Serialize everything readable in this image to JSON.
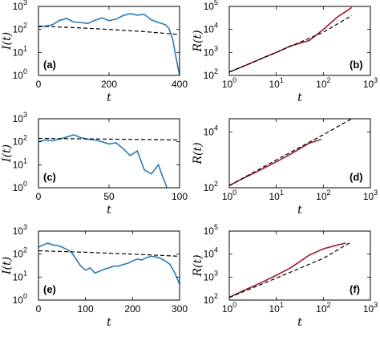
{
  "colors": {
    "data_I": "#2a7ab8",
    "data_R": "#a01a30",
    "fit": "#000000"
  },
  "chart_data": [
    {
      "panel": "(a)",
      "type": "line",
      "xlabel": "t",
      "ylabel": "I(t)",
      "xscale": "linear",
      "yscale": "log",
      "xlim": [
        0,
        400
      ],
      "ylim": [
        1,
        1000
      ],
      "xticks": [
        "0",
        "200",
        "400"
      ],
      "yticks": [
        "10^0",
        "10^1",
        "10^2",
        "10^3"
      ],
      "series": [
        {
          "style": "solid",
          "color": "data_I",
          "x": [
            0,
            20,
            40,
            60,
            80,
            100,
            120,
            140,
            160,
            180,
            200,
            220,
            240,
            260,
            280,
            300,
            320,
            340,
            360,
            370,
            380,
            390,
            400
          ],
          "y": [
            130,
            140,
            160,
            250,
            300,
            210,
            200,
            180,
            250,
            320,
            240,
            280,
            400,
            480,
            420,
            450,
            260,
            200,
            160,
            110,
            40,
            6,
            1
          ]
        },
        {
          "style": "dashed",
          "color": "fit",
          "x": [
            0,
            100,
            200,
            300,
            400
          ],
          "y": [
            140,
            120,
            100,
            80,
            60
          ]
        }
      ]
    },
    {
      "panel": "(b)",
      "type": "line",
      "xlabel": "t",
      "ylabel": "R(t)",
      "xscale": "log",
      "yscale": "log",
      "xlim": [
        1,
        1000
      ],
      "ylim": [
        100,
        100000
      ],
      "xticks": [
        "10^0",
        "10^1",
        "10^2",
        "10^3"
      ],
      "yticks": [
        "10^2",
        "10^3",
        "10^4",
        "10^5"
      ],
      "series": [
        {
          "style": "solid",
          "color": "data_R",
          "x": [
            1,
            2,
            5,
            10,
            20,
            50,
            100,
            200,
            300,
            400
          ],
          "y": [
            140,
            250,
            560,
            1000,
            1900,
            3300,
            10000,
            35000,
            60000,
            90000
          ]
        },
        {
          "style": "dashed",
          "color": "fit",
          "x": [
            1,
            10,
            100,
            400
          ],
          "y": [
            140,
            1000,
            7500,
            40000
          ]
        }
      ]
    },
    {
      "panel": "(c)",
      "type": "line",
      "xlabel": "t",
      "ylabel": "I(t)",
      "xscale": "linear",
      "yscale": "log",
      "xlim": [
        0,
        100
      ],
      "ylim": [
        1,
        1000
      ],
      "xticks": [
        "0",
        "50",
        "100"
      ],
      "yticks": [
        "10^0",
        "10^1",
        "10^2",
        "10^3"
      ],
      "series": [
        {
          "style": "solid",
          "color": "data_I",
          "x": [
            0,
            5,
            10,
            15,
            20,
            25,
            30,
            35,
            40,
            45,
            50,
            55,
            60,
            65,
            70,
            75,
            80,
            85,
            88,
            90,
            91
          ],
          "y": [
            100,
            120,
            110,
            130,
            160,
            200,
            150,
            130,
            120,
            100,
            80,
            90,
            50,
            25,
            40,
            6,
            4,
            10,
            3,
            1.5,
            1
          ]
        },
        {
          "style": "dashed",
          "color": "fit",
          "x": [
            0,
            50,
            100
          ],
          "y": [
            140,
            130,
            120
          ]
        }
      ]
    },
    {
      "panel": "(d)",
      "type": "line",
      "xlabel": "t",
      "ylabel": "R(t)",
      "xscale": "log",
      "yscale": "log",
      "xlim": [
        1,
        1000
      ],
      "ylim": [
        100,
        30000
      ],
      "xticks": [
        "10^0",
        "10^1",
        "10^2",
        "10^3"
      ],
      "yticks": [
        "10^2",
        "10^4"
      ],
      "series": [
        {
          "style": "solid",
          "color": "data_R",
          "x": [
            1,
            2,
            5,
            10,
            20,
            50,
            91
          ],
          "y": [
            120,
            220,
            470,
            850,
            1600,
            4000,
            5500
          ]
        },
        {
          "style": "dashed",
          "color": "fit",
          "x": [
            1,
            10,
            100,
            400
          ],
          "y": [
            120,
            1000,
            8000,
            30000
          ]
        }
      ]
    },
    {
      "panel": "(e)",
      "type": "line",
      "xlabel": "t",
      "ylabel": "I(t)",
      "xscale": "linear",
      "yscale": "log",
      "xlim": [
        0,
        300
      ],
      "ylim": [
        1,
        1000
      ],
      "xticks": [
        "0",
        "100",
        "200",
        "300"
      ],
      "yticks": [
        "10^0",
        "10^1",
        "10^2",
        "10^3"
      ],
      "series": [
        {
          "style": "solid",
          "color": "data_I",
          "x": [
            0,
            10,
            20,
            30,
            40,
            50,
            60,
            70,
            80,
            90,
            100,
            110,
            120,
            130,
            140,
            150,
            160,
            170,
            180,
            190,
            200,
            210,
            220,
            230,
            240,
            250,
            260,
            270,
            280,
            290,
            300
          ],
          "y": [
            200,
            250,
            300,
            250,
            240,
            200,
            160,
            120,
            60,
            30,
            20,
            25,
            15,
            18,
            22,
            25,
            30,
            30,
            35,
            40,
            50,
            60,
            55,
            70,
            80,
            75,
            65,
            50,
            35,
            15,
            5
          ]
        },
        {
          "style": "dashed",
          "color": "fit",
          "x": [
            0,
            100,
            200,
            300
          ],
          "y": [
            140,
            120,
            100,
            80
          ]
        }
      ]
    },
    {
      "panel": "(f)",
      "type": "line",
      "xlabel": "t",
      "ylabel": "R(t)",
      "xscale": "log",
      "yscale": "log",
      "xlim": [
        1,
        1000
      ],
      "ylim": [
        100,
        100000
      ],
      "xticks": [
        "10^0",
        "10^1",
        "10^2",
        "10^3"
      ],
      "yticks": [
        "10^2",
        "10^3",
        "10^4",
        "10^5"
      ],
      "series": [
        {
          "style": "solid",
          "color": "data_R",
          "x": [
            1,
            2,
            5,
            10,
            20,
            50,
            100,
            200,
            300
          ],
          "y": [
            130,
            260,
            600,
            1200,
            2500,
            9000,
            17000,
            25000,
            30000
          ]
        },
        {
          "style": "dashed",
          "color": "fit",
          "x": [
            1,
            10,
            100,
            400
          ],
          "y": [
            130,
            900,
            6500,
            35000
          ]
        }
      ]
    }
  ]
}
